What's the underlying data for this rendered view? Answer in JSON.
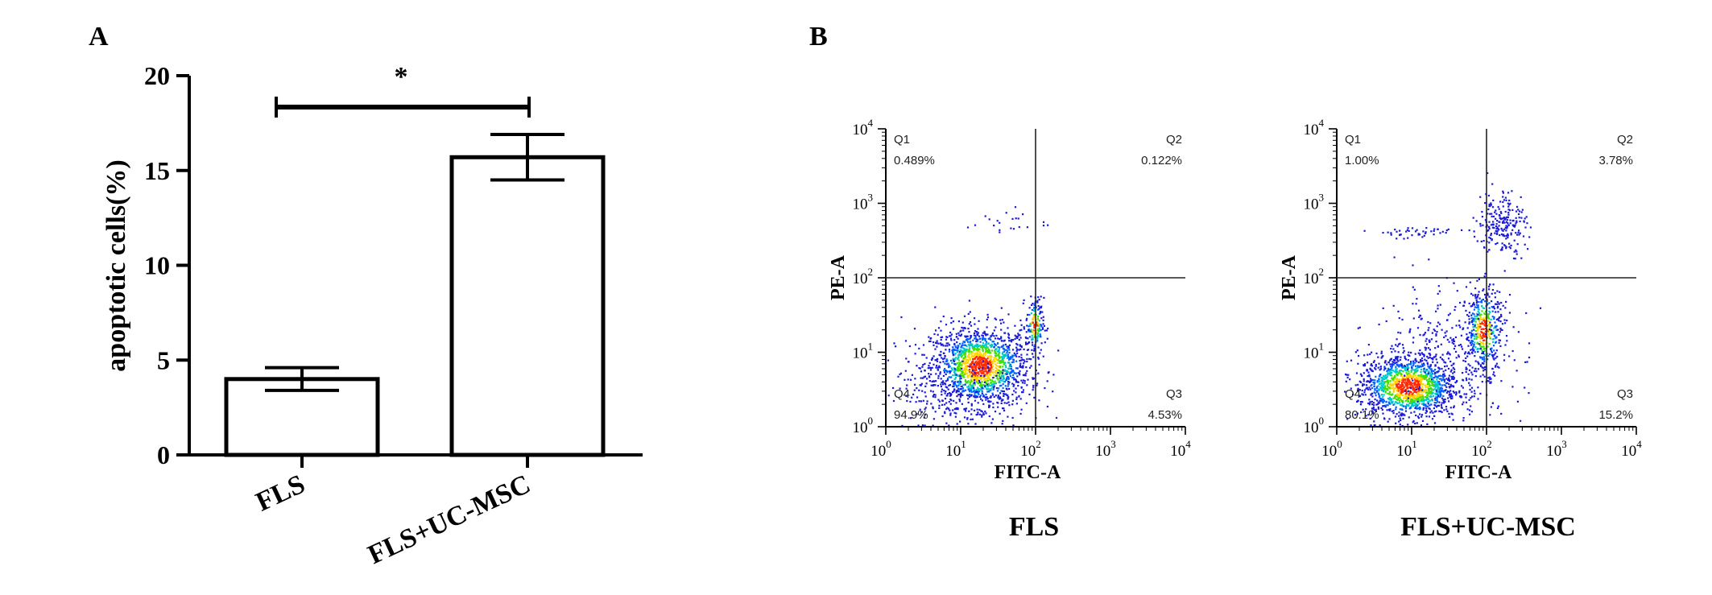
{
  "panel_a": {
    "letter": "A",
    "significance": "*",
    "chart_data": {
      "type": "bar",
      "categories": [
        "FLS",
        "FLS+UC-MSC"
      ],
      "values": [
        4.0,
        15.7
      ],
      "errors": [
        0.6,
        1.2
      ],
      "xlabel": "",
      "ylabel": "apoptotic cells(%)",
      "ylim": [
        0,
        20
      ],
      "yticks": [
        0,
        5,
        10,
        15,
        20
      ],
      "grid": false,
      "legend": "none"
    }
  },
  "panel_b": {
    "letter": "B",
    "plots": [
      {
        "caption": "FLS",
        "xlabel": "FITC-A",
        "ylabel": "PE-A",
        "quadrants": [
          {
            "label": "Q1",
            "value": "0.489%",
            "corner": "top-left"
          },
          {
            "label": "Q2",
            "value": "0.122%",
            "corner": "top-right"
          },
          {
            "label": "Q3",
            "value": "4.53%",
            "corner": "bottom-right"
          },
          {
            "label": "Q4",
            "value": "94.9%",
            "corner": "bottom-left"
          }
        ]
      },
      {
        "caption": "FLS+UC-MSC",
        "xlabel": "FITC-A",
        "ylabel": "PE-A",
        "quadrants": [
          {
            "label": "Q1",
            "value": "1.00%",
            "corner": "top-left"
          },
          {
            "label": "Q2",
            "value": "3.78%",
            "corner": "top-right"
          },
          {
            "label": "Q3",
            "value": "15.2%",
            "corner": "bottom-right"
          },
          {
            "label": "Q4",
            "value": "80.1%",
            "corner": "bottom-left"
          }
        ]
      }
    ]
  },
  "chart_data": [
    {
      "type": "bar",
      "categories": [
        "FLS",
        "FLS+UC-MSC"
      ],
      "values": [
        4.0,
        15.7
      ],
      "errors": [
        0.6,
        1.2
      ],
      "ylabel": "apoptotic cells(%)",
      "ylim": [
        0,
        20
      ]
    },
    {
      "type": "scatter",
      "xlabel": "FITC-A",
      "ylabel": "PE-A",
      "xscale": "log",
      "yscale": "log",
      "xlim": [
        1,
        10000
      ],
      "ylim": [
        1,
        10000
      ],
      "xticks": [
        "10^0",
        "10^1",
        "10^2",
        "10^3",
        "10^4"
      ],
      "yticks": [
        "10^0",
        "10^1",
        "10^2",
        "10^3",
        "10^4"
      ],
      "quadrant_gate": {
        "x": 100,
        "y": 100
      },
      "panels": [
        {
          "caption": "FLS",
          "Q1": "0.489%",
          "Q2": "0.122%",
          "Q3": "4.53%",
          "Q4": "94.9%"
        },
        {
          "caption": "FLS+UC-MSC",
          "Q1": "1.00%",
          "Q2": "3.78%",
          "Q3": "15.2%",
          "Q4": "80.1%"
        }
      ]
    }
  ],
  "log_ticks": [
    {
      "base": "10",
      "exp": "0"
    },
    {
      "base": "10",
      "exp": "1"
    },
    {
      "base": "10",
      "exp": "2"
    },
    {
      "base": "10",
      "exp": "3"
    },
    {
      "base": "10",
      "exp": "4"
    }
  ]
}
